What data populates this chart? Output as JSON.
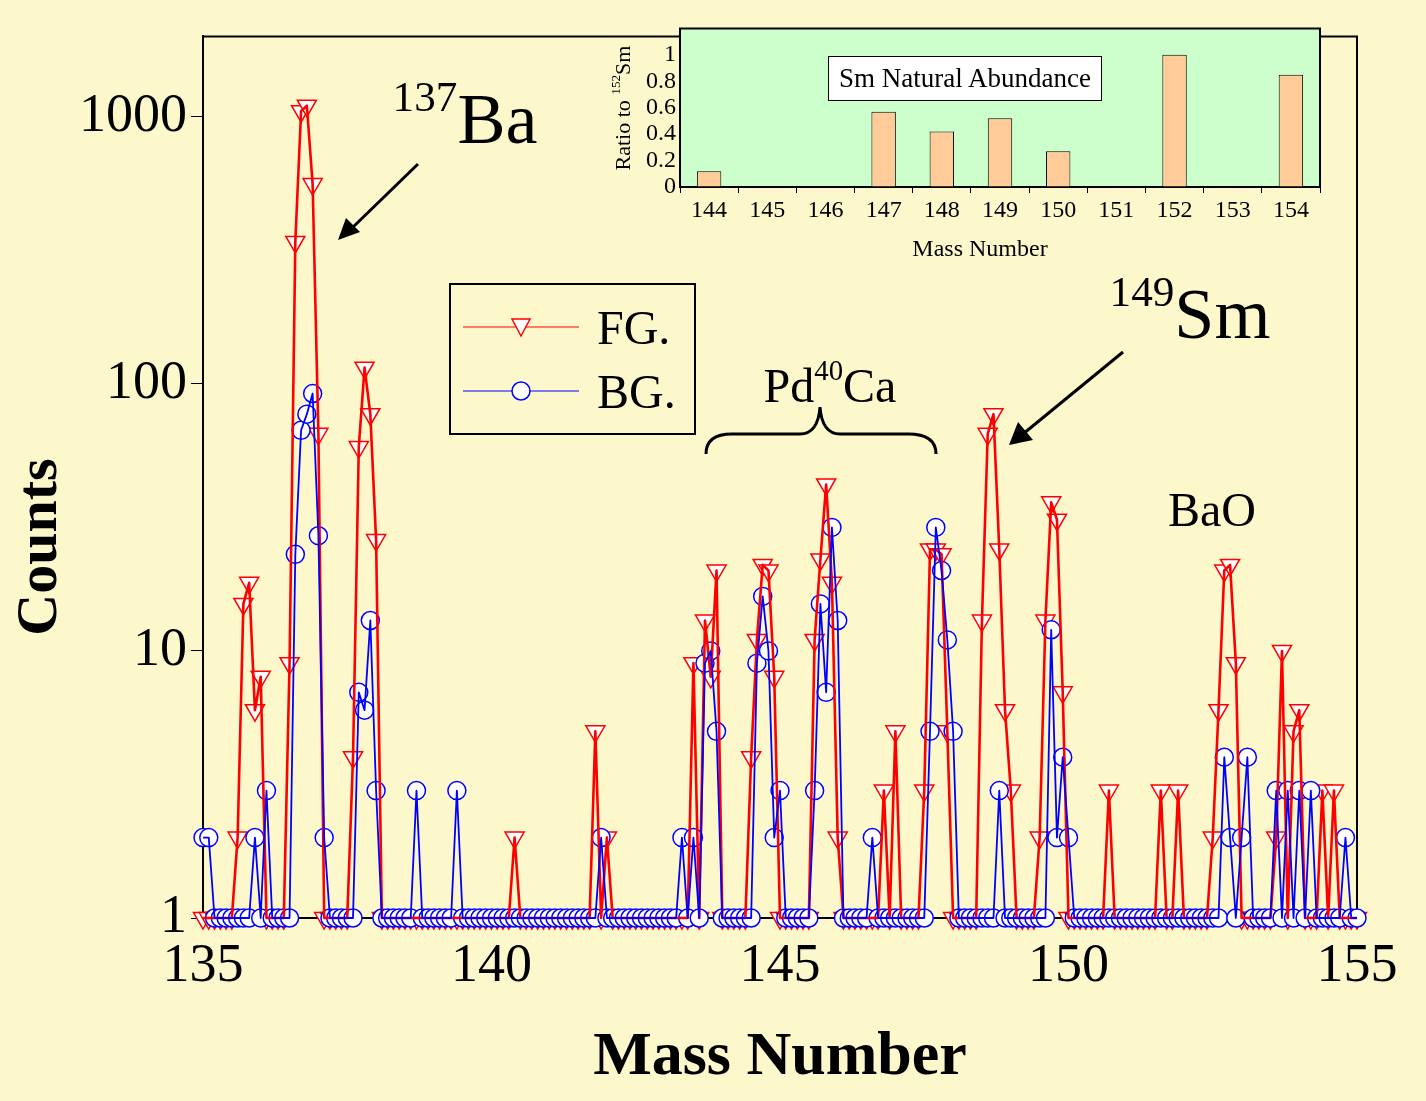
{
  "chart_data": [
    {
      "type": "line",
      "xlabel": "Mass Number",
      "ylabel": "Counts",
      "log": "y",
      "legend": "top left",
      "xlim": [
        135,
        155
      ],
      "xticks": [
        135,
        140,
        145,
        150,
        155
      ],
      "ylim": [
        1,
        2000
      ],
      "yticks": [
        1,
        10,
        100,
        1000
      ],
      "x": [
        135,
        135.1,
        135.2,
        135.3,
        135.4,
        135.5,
        135.6,
        135.7,
        135.8,
        135.9,
        136,
        136.1,
        136.2,
        136.3,
        136.4,
        136.5,
        136.6,
        136.7,
        136.8,
        136.9,
        137,
        137.1,
        137.2,
        137.3,
        137.4,
        137.5,
        137.6,
        137.7,
        137.8,
        137.9,
        138,
        138.1,
        138.2,
        138.3,
        138.4,
        138.5,
        138.6,
        138.7,
        138.8,
        138.9,
        139,
        139.1,
        139.2,
        139.3,
        139.4,
        139.5,
        139.6,
        139.7,
        139.8,
        139.9,
        140,
        140.1,
        140.2,
        140.3,
        140.4,
        140.5,
        140.6,
        140.7,
        140.8,
        140.9,
        141,
        141.1,
        141.2,
        141.3,
        141.4,
        141.5,
        141.6,
        141.7,
        141.8,
        141.9,
        142,
        142.1,
        142.2,
        142.3,
        142.4,
        142.5,
        142.6,
        142.7,
        142.8,
        142.9,
        143,
        143.1,
        143.2,
        143.3,
        143.4,
        143.5,
        143.6,
        143.7,
        143.8,
        143.9,
        144,
        144.1,
        144.2,
        144.3,
        144.4,
        144.5,
        144.6,
        144.7,
        144.8,
        144.9,
        145,
        145.1,
        145.2,
        145.3,
        145.4,
        145.5,
        145.6,
        145.7,
        145.8,
        145.9,
        146,
        146.1,
        146.2,
        146.3,
        146.4,
        146.5,
        146.6,
        146.7,
        146.8,
        146.9,
        147,
        147.1,
        147.2,
        147.3,
        147.4,
        147.5,
        147.6,
        147.7,
        147.8,
        147.9,
        148,
        148.1,
        148.2,
        148.3,
        148.4,
        148.5,
        148.6,
        148.7,
        148.8,
        148.9,
        149,
        149.1,
        149.2,
        149.3,
        149.4,
        149.5,
        149.6,
        149.7,
        149.8,
        149.9,
        150,
        150.1,
        150.2,
        150.3,
        150.4,
        150.5,
        150.6,
        150.7,
        150.8,
        150.9,
        151,
        151.1,
        151.2,
        151.3,
        151.4,
        151.5,
        151.6,
        151.7,
        151.8,
        151.9,
        152,
        152.1,
        152.2,
        152.3,
        152.4,
        152.5,
        152.6,
        152.7,
        152.8,
        152.9,
        153,
        153.1,
        153.2,
        153.3,
        153.4,
        153.5,
        153.6,
        153.7,
        153.8,
        153.9,
        154,
        154.1,
        154.2,
        154.3,
        154.4,
        154.5,
        154.6,
        154.7,
        154.8,
        154.9,
        155
      ],
      "series": [
        {
          "name": "FG.",
          "color": "#ff0000",
          "marker": "triangle",
          "values": [
            1,
            1,
            1,
            1,
            1,
            1,
            2,
            15,
            18,
            6,
            8,
            1,
            1,
            1,
            1,
            9,
            340,
            1050,
            1100,
            560,
            65,
            1,
            1,
            1,
            1,
            1,
            4,
            58,
            115,
            77,
            26,
            1,
            1,
            1,
            1,
            1,
            1,
            1,
            1,
            1,
            1,
            1,
            1,
            1,
            1,
            1,
            1,
            1,
            1,
            1,
            1,
            1,
            1,
            1,
            2,
            1,
            1,
            1,
            1,
            1,
            1,
            1,
            1,
            1,
            1,
            1,
            1,
            1,
            5,
            1,
            2,
            1,
            1,
            1,
            1,
            1,
            1,
            1,
            1,
            1,
            1,
            1,
            1,
            1,
            1,
            9,
            1,
            13,
            8,
            20,
            1,
            1,
            1,
            1,
            1,
            4,
            11,
            21,
            20,
            8,
            1,
            1,
            1,
            1,
            1,
            1,
            11,
            22,
            42,
            18,
            2,
            1,
            1,
            1,
            1,
            1,
            1,
            1,
            3,
            1,
            5,
            1,
            1,
            1,
            1,
            3,
            24,
            24,
            23,
            5,
            1,
            1,
            1,
            1,
            1,
            13,
            65,
            77,
            24,
            6,
            3,
            1,
            1,
            1,
            1,
            2,
            13,
            36,
            31,
            7,
            1,
            1,
            1,
            1,
            1,
            1,
            1,
            3,
            1,
            1,
            1,
            1,
            1,
            1,
            1,
            1,
            3,
            1,
            1,
            3,
            1,
            1,
            1,
            1,
            1,
            2,
            6,
            20,
            21,
            9,
            1,
            1,
            1,
            1,
            1,
            1,
            2,
            10,
            1,
            5,
            6,
            1,
            1,
            1,
            3,
            1,
            3,
            1,
            1,
            1,
            1
          ]
        },
        {
          "name": "BG.",
          "color": "#0000ff",
          "marker": "circle",
          "values": [
            2,
            2,
            1,
            1,
            1,
            1,
            1,
            1,
            1,
            2,
            1,
            3,
            1,
            1,
            1,
            1,
            23,
            67,
            77,
            92,
            27,
            2,
            1,
            1,
            1,
            1,
            1,
            7,
            6,
            13,
            3,
            1,
            1,
            1,
            1,
            1,
            1,
            3,
            1,
            1,
            1,
            1,
            1,
            1,
            3,
            1,
            1,
            1,
            1,
            1,
            1,
            1,
            1,
            1,
            1,
            1,
            1,
            1,
            1,
            1,
            1,
            1,
            1,
            1,
            1,
            1,
            1,
            1,
            1,
            2,
            1,
            1,
            1,
            1,
            1,
            1,
            1,
            1,
            1,
            1,
            1,
            1,
            1,
            2,
            1,
            2,
            1,
            9,
            10,
            5,
            1,
            1,
            1,
            1,
            1,
            1,
            9,
            16,
            10,
            2,
            3,
            1,
            1,
            1,
            1,
            1,
            3,
            15,
            7,
            29,
            13,
            1,
            1,
            1,
            1,
            1,
            2,
            1,
            1,
            1,
            1,
            1,
            1,
            1,
            1,
            1,
            5,
            29,
            20,
            11,
            5,
            1,
            1,
            1,
            1,
            1,
            1,
            1,
            3,
            1,
            1,
            1,
            1,
            1,
            1,
            1,
            1,
            12,
            2,
            4,
            2,
            1,
            1,
            1,
            1,
            1,
            1,
            1,
            1,
            1,
            1,
            1,
            1,
            1,
            1,
            1,
            1,
            1,
            1,
            1,
            1,
            1,
            1,
            1,
            1,
            1,
            1,
            4,
            2,
            1,
            2,
            4,
            1,
            1,
            1,
            1,
            3,
            1,
            3,
            1,
            3,
            1,
            3,
            1,
            1,
            1,
            1,
            1,
            2,
            1,
            1
          ]
        }
      ],
      "annotations": [
        "$^{137}$Ba",
        "$^{149}$Sm",
        "Pd$^{40}$Ca",
        "BaO"
      ]
    },
    {
      "type": "bar",
      "title": "Sm Natural Abundance",
      "xlabel": "Mass Number",
      "ylabel": "Ratio to $^{152}$Sm",
      "categories": [
        "144",
        "145",
        "146",
        "147",
        "148",
        "149",
        "150",
        "151",
        "152",
        "153",
        "154"
      ],
      "values": [
        0.12,
        null,
        null,
        0.57,
        0.42,
        0.52,
        0.27,
        null,
        1,
        null,
        0.85
      ],
      "color": "#ffcc99",
      "ylim": [
        0,
        1.2
      ],
      "yticks": [
        0,
        0.2,
        0.4,
        0.6,
        0.8,
        1
      ]
    }
  ]
}
